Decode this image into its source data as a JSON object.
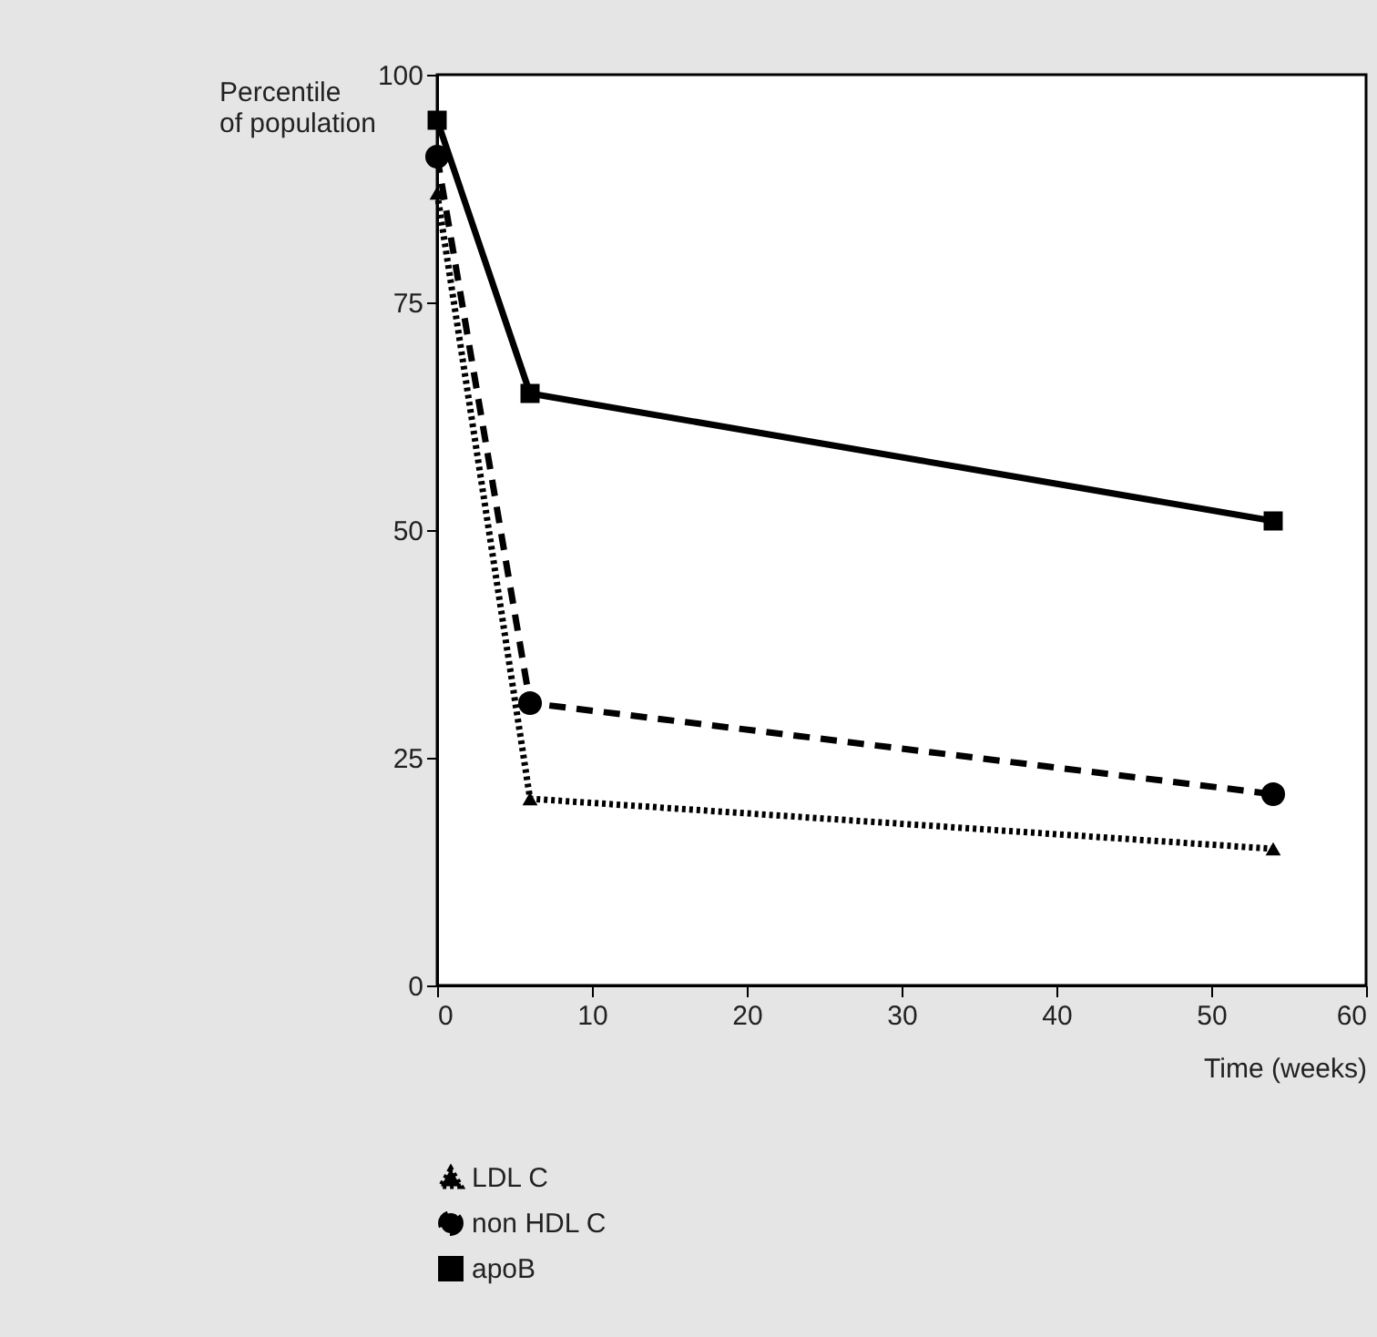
{
  "chart_data": {
    "type": "line",
    "ylabel": "Percentile of population",
    "xlabel": "Time (weeks)",
    "xlim": [
      0,
      60
    ],
    "xticks": [
      0,
      10,
      20,
      30,
      40,
      50,
      60
    ],
    "ylim": [
      0,
      100
    ],
    "yticks": [
      0,
      25,
      50,
      75,
      100
    ],
    "grid": false,
    "legend": "bottom",
    "series": [
      {
        "name": "LDL C",
        "color": "#000000",
        "marker": "triangle",
        "line_style": "dotted",
        "x": [
          0,
          6,
          54
        ],
        "values": [
          87,
          20.5,
          15
        ]
      },
      {
        "name": "non HDL C",
        "color": "#000000",
        "marker": "circle",
        "line_style": "dashed",
        "x": [
          0,
          6,
          54
        ],
        "values": [
          91,
          31,
          21
        ]
      },
      {
        "name": "apoB",
        "color": "#000000",
        "marker": "square",
        "line_style": "solid",
        "x": [
          0,
          6,
          54
        ],
        "values": [
          95,
          65,
          51
        ]
      }
    ]
  }
}
